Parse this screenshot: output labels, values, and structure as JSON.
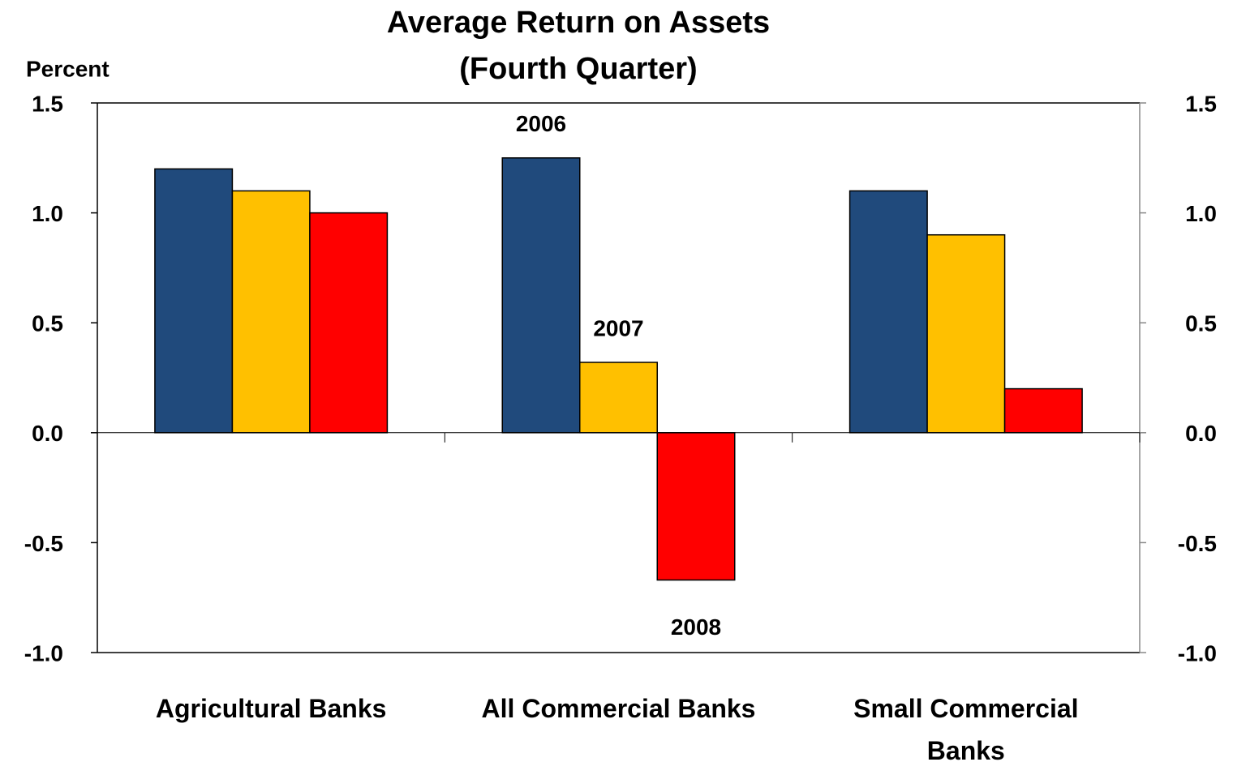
{
  "chart_data": {
    "type": "bar",
    "title": "Average Return on Assets",
    "subtitle": "(Fourth Quarter)",
    "y_label": "Percent",
    "categories": [
      "Agricultural Banks",
      "All Commercial Banks",
      "Small Commercial Banks"
    ],
    "series": [
      {
        "name": "2006",
        "color": "#204a7c",
        "values": [
          1.2,
          1.25,
          1.1
        ]
      },
      {
        "name": "2007",
        "color": "#ffc000",
        "values": [
          1.1,
          0.32,
          0.9
        ]
      },
      {
        "name": "2008",
        "color": "#ff0000",
        "values": [
          1.0,
          -0.67,
          0.2
        ]
      }
    ],
    "ylim": [
      -1.0,
      1.5
    ],
    "yticks": [
      {
        "value": -1.0,
        "label": "-1.0"
      },
      -0.5,
      {
        "value": 0.0,
        "label": "0.0"
      },
      0.5,
      {
        "value": 1.0,
        "label": "1.0"
      },
      1.5
    ],
    "y2lim": [
      -1.0,
      1.5
    ],
    "y2ticks": [
      {
        "value": -1.0,
        "label": "-1.0"
      },
      -0.5,
      {
        "value": 0.0,
        "label": "0.0"
      },
      0.5,
      {
        "value": 1.0,
        "label": "1.0"
      },
      1.5
    ],
    "grid": false
  }
}
